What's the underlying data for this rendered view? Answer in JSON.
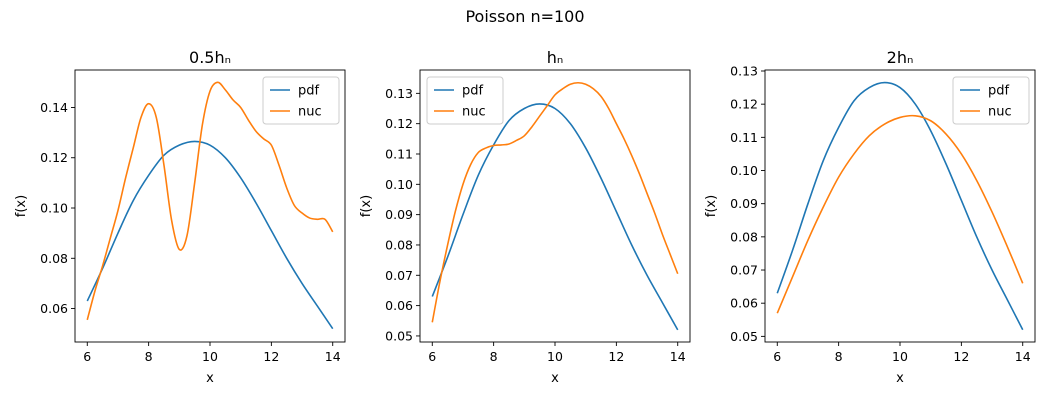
{
  "figure_title": "Poisson n=100",
  "colors": {
    "pdf": "#1f77b4",
    "nuc": "#ff7f0e"
  },
  "chart_data": [
    {
      "type": "line",
      "title": "0.5hₙ",
      "xlabel": "x",
      "ylabel": "f(x)",
      "xlim": [
        5.6,
        14.4
      ],
      "ylim": [
        0.0467,
        0.1549
      ],
      "xticks": [
        6,
        8,
        10,
        12,
        14
      ],
      "yticks": [
        0.06,
        0.08,
        0.1,
        0.12,
        0.14
      ],
      "ytick_labels": [
        "0.06",
        "0.08",
        "0.10",
        "0.12",
        "0.14"
      ],
      "legend_position": "upper right",
      "grid": false,
      "series": [
        {
          "name": "pdf",
          "x": [
            6.0,
            6.5,
            7.0,
            7.5,
            8.0,
            8.5,
            9.0,
            9.5,
            10.0,
            10.5,
            11.0,
            11.5,
            12.0,
            12.5,
            13.0,
            13.5,
            14.0
          ],
          "y": [
            0.063,
            0.076,
            0.09,
            0.103,
            0.113,
            0.121,
            0.125,
            0.1265,
            0.125,
            0.12,
            0.112,
            0.102,
            0.091,
            0.08,
            0.07,
            0.061,
            0.052
          ]
        },
        {
          "name": "nuc",
          "x": [
            6.0,
            6.25,
            6.5,
            6.75,
            7.0,
            7.25,
            7.5,
            7.75,
            8.0,
            8.25,
            8.5,
            8.75,
            9.0,
            9.25,
            9.5,
            9.75,
            10.0,
            10.25,
            10.5,
            10.75,
            11.0,
            11.25,
            11.5,
            11.75,
            12.0,
            12.25,
            12.5,
            12.75,
            13.0,
            13.25,
            13.5,
            13.75,
            14.0
          ],
          "y": [
            0.0555,
            0.067,
            0.077,
            0.088,
            0.099,
            0.112,
            0.124,
            0.136,
            0.1415,
            0.136,
            0.117,
            0.095,
            0.0835,
            0.089,
            0.11,
            0.133,
            0.1465,
            0.15,
            0.147,
            0.143,
            0.14,
            0.135,
            0.1305,
            0.1275,
            0.125,
            0.117,
            0.108,
            0.101,
            0.098,
            0.096,
            0.0955,
            0.0955,
            0.0905
          ]
        }
      ]
    },
    {
      "type": "line",
      "title": "hₙ",
      "xlabel": "x",
      "ylabel": "f(x)",
      "xlim": [
        5.6,
        14.4
      ],
      "ylim": [
        0.048,
        0.1377
      ],
      "xticks": [
        6,
        8,
        10,
        12,
        14
      ],
      "yticks": [
        0.05,
        0.06,
        0.07,
        0.08,
        0.09,
        0.1,
        0.11,
        0.12,
        0.13
      ],
      "ytick_labels": [
        "0.05",
        "0.06",
        "0.07",
        "0.08",
        "0.09",
        "0.10",
        "0.11",
        "0.12",
        "0.13"
      ],
      "legend_position": "upper left",
      "grid": false,
      "series": [
        {
          "name": "pdf",
          "x": [
            6.0,
            6.5,
            7.0,
            7.5,
            8.0,
            8.5,
            9.0,
            9.5,
            10.0,
            10.5,
            11.0,
            11.5,
            12.0,
            12.5,
            13.0,
            13.5,
            14.0
          ],
          "y": [
            0.063,
            0.076,
            0.09,
            0.103,
            0.113,
            0.121,
            0.125,
            0.1265,
            0.125,
            0.12,
            0.112,
            0.102,
            0.091,
            0.08,
            0.07,
            0.061,
            0.052
          ]
        },
        {
          "name": "nuc",
          "x": [
            6.0,
            6.25,
            6.5,
            6.75,
            7.0,
            7.25,
            7.5,
            7.75,
            8.0,
            8.25,
            8.5,
            8.75,
            9.0,
            9.25,
            9.5,
            9.75,
            10.0,
            10.25,
            10.5,
            10.75,
            11.0,
            11.25,
            11.5,
            11.75,
            12.0,
            12.25,
            12.5,
            12.75,
            13.0,
            13.25,
            13.5,
            13.75,
            14.0
          ],
          "y": [
            0.0545,
            0.068,
            0.08,
            0.091,
            0.1,
            0.1065,
            0.1105,
            0.112,
            0.1128,
            0.113,
            0.1133,
            0.1145,
            0.116,
            0.119,
            0.1225,
            0.126,
            0.1295,
            0.1315,
            0.133,
            0.1335,
            0.133,
            0.1315,
            0.129,
            0.125,
            0.12,
            0.115,
            0.1095,
            0.1035,
            0.097,
            0.0905,
            0.0835,
            0.077,
            0.0705
          ]
        }
      ]
    },
    {
      "type": "line",
      "title": "2hₙ",
      "xlabel": "x",
      "ylabel": "f(x)",
      "xlim": [
        5.6,
        14.4
      ],
      "ylim": [
        0.0483,
        0.1303
      ],
      "xticks": [
        6,
        8,
        10,
        12,
        14
      ],
      "yticks": [
        0.05,
        0.06,
        0.07,
        0.08,
        0.09,
        0.1,
        0.11,
        0.12,
        0.13
      ],
      "ytick_labels": [
        "0.05",
        "0.06",
        "0.07",
        "0.08",
        "0.09",
        "0.10",
        "0.11",
        "0.12",
        "0.13"
      ],
      "legend_position": "upper right",
      "grid": false,
      "series": [
        {
          "name": "pdf",
          "x": [
            6.0,
            6.5,
            7.0,
            7.5,
            8.0,
            8.5,
            9.0,
            9.5,
            10.0,
            10.5,
            11.0,
            11.5,
            12.0,
            12.5,
            13.0,
            13.5,
            14.0
          ],
          "y": [
            0.063,
            0.076,
            0.09,
            0.103,
            0.113,
            0.121,
            0.125,
            0.1265,
            0.125,
            0.12,
            0.112,
            0.102,
            0.091,
            0.08,
            0.07,
            0.061,
            0.052
          ]
        },
        {
          "name": "nuc",
          "x": [
            6.0,
            6.5,
            7.0,
            7.5,
            8.0,
            8.5,
            9.0,
            9.5,
            10.0,
            10.5,
            11.0,
            11.5,
            12.0,
            12.5,
            13.0,
            13.5,
            14.0
          ],
          "y": [
            0.057,
            0.068,
            0.079,
            0.089,
            0.098,
            0.105,
            0.1105,
            0.114,
            0.116,
            0.1165,
            0.115,
            0.111,
            0.105,
            0.097,
            0.0875,
            0.077,
            0.066
          ]
        }
      ]
    }
  ]
}
